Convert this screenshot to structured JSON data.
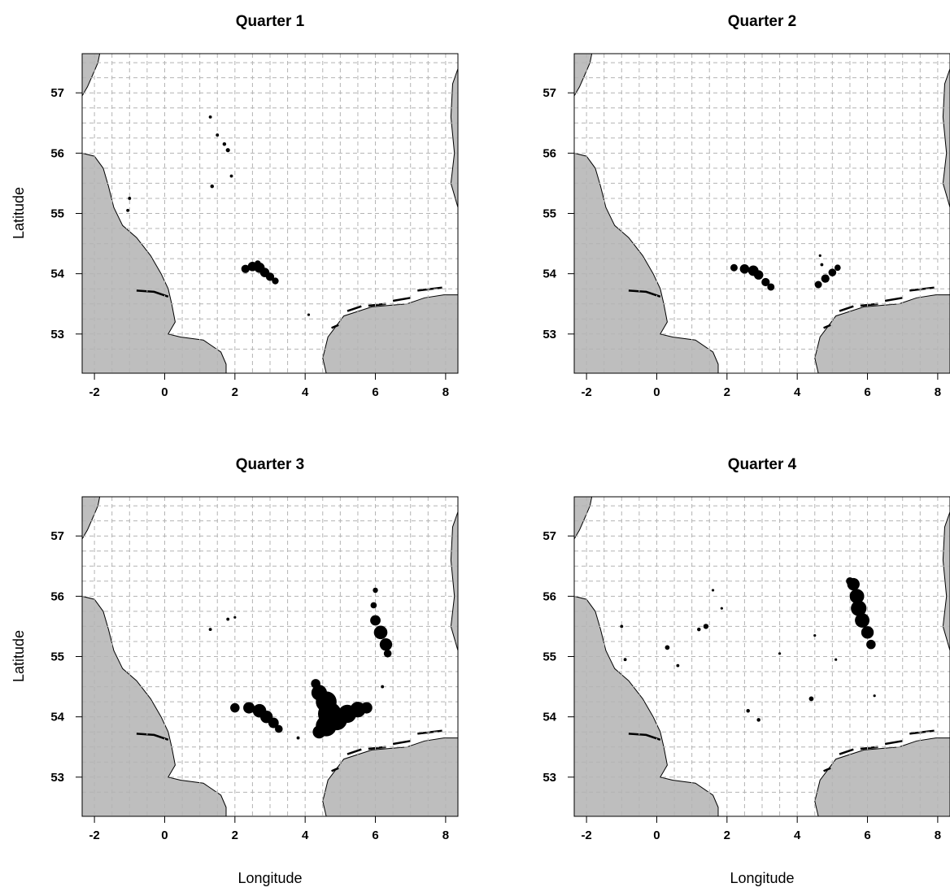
{
  "figure": {
    "xlabel": "Longitude",
    "ylabel": "Latitude"
  },
  "map": {
    "xlim": [
      -2.35,
      8.35
    ],
    "ylim": [
      52.35,
      57.65
    ],
    "xticks": [
      -2,
      0,
      2,
      4,
      6,
      8
    ],
    "yticks": [
      53,
      54,
      55,
      56,
      57
    ],
    "grid_lon": [
      -2,
      -1.5,
      -1,
      -0.5,
      0,
      0.5,
      1,
      1.5,
      2,
      2.5,
      3,
      3.5,
      4,
      4.5,
      5,
      5.5,
      6,
      6.5,
      7,
      7.5,
      8
    ],
    "grid_lat": [
      52.75,
      53,
      53.25,
      53.5,
      53.75,
      54,
      54.25,
      54.5,
      54.75,
      55,
      55.25,
      55.5,
      55.75,
      56,
      56.25,
      56.5,
      56.75,
      57,
      57.25,
      57.5
    ],
    "grid": true,
    "land_color": "#bebebe",
    "sea_color": "#ffffff",
    "grid_color": "#b4b4b4",
    "point_color": "#000000",
    "coast_west": [
      [
        -1.85,
        57.65
      ],
      [
        -1.9,
        57.5
      ],
      [
        -2.05,
        57.3
      ],
      [
        -2.2,
        57.1
      ],
      [
        -2.35,
        56.95
      ]
    ],
    "coast_england": [
      [
        -2.35,
        56.0
      ],
      [
        -2.0,
        55.95
      ],
      [
        -1.75,
        55.75
      ],
      [
        -1.6,
        55.45
      ],
      [
        -1.45,
        55.1
      ],
      [
        -1.2,
        54.8
      ],
      [
        -0.8,
        54.6
      ],
      [
        -0.4,
        54.3
      ],
      [
        -0.1,
        54.0
      ],
      [
        0.1,
        53.75
      ],
      [
        0.2,
        53.5
      ],
      [
        0.3,
        53.2
      ],
      [
        0.1,
        53.0
      ],
      [
        0.45,
        52.95
      ],
      [
        1.1,
        52.9
      ],
      [
        1.6,
        52.7
      ],
      [
        1.75,
        52.5
      ],
      [
        1.75,
        52.35
      ]
    ],
    "coast_continent": [
      [
        4.6,
        52.35
      ],
      [
        4.5,
        52.6
      ],
      [
        4.65,
        52.95
      ],
      [
        5.1,
        53.3
      ],
      [
        5.9,
        53.45
      ],
      [
        6.9,
        53.5
      ],
      [
        7.4,
        53.6
      ],
      [
        7.95,
        53.65
      ],
      [
        8.35,
        53.65
      ]
    ],
    "coast_jutland": [
      [
        8.35,
        57.4
      ],
      [
        8.2,
        57.15
      ],
      [
        8.15,
        56.6
      ],
      [
        8.25,
        56.0
      ],
      [
        8.15,
        55.5
      ],
      [
        8.35,
        55.1
      ]
    ],
    "humber": [
      [
        -0.8,
        53.72
      ],
      [
        -0.3,
        53.7
      ],
      [
        0.1,
        53.62
      ]
    ],
    "wadden_islands": [
      [
        [
          4.75,
          53.1
        ],
        [
          4.95,
          53.15
        ]
      ],
      [
        [
          5.2,
          53.38
        ],
        [
          5.6,
          53.46
        ]
      ],
      [
        [
          5.8,
          53.47
        ],
        [
          6.3,
          53.5
        ]
      ],
      [
        [
          6.5,
          53.55
        ],
        [
          7.0,
          53.6
        ]
      ],
      [
        [
          7.2,
          53.72
        ],
        [
          7.9,
          53.77
        ]
      ]
    ]
  },
  "panels": [
    {
      "title": "Quarter 1",
      "points": [
        {
          "lon": 1.3,
          "lat": 56.6,
          "r": 0.6
        },
        {
          "lon": 1.5,
          "lat": 56.3,
          "r": 0.6
        },
        {
          "lon": 1.7,
          "lat": 56.15,
          "r": 0.7
        },
        {
          "lon": 1.8,
          "lat": 56.05,
          "r": 0.8
        },
        {
          "lon": 1.9,
          "lat": 55.62,
          "r": 0.6
        },
        {
          "lon": 1.35,
          "lat": 55.45,
          "r": 0.7
        },
        {
          "lon": -1.0,
          "lat": 55.25,
          "r": 0.6
        },
        {
          "lon": -1.05,
          "lat": 55.05,
          "r": 0.6
        },
        {
          "lon": 2.3,
          "lat": 54.08,
          "r": 1.6
        },
        {
          "lon": 2.5,
          "lat": 54.12,
          "r": 1.8
        },
        {
          "lon": 2.7,
          "lat": 54.1,
          "r": 2.0
        },
        {
          "lon": 2.85,
          "lat": 54.02,
          "r": 1.8
        },
        {
          "lon": 3.0,
          "lat": 53.95,
          "r": 1.6
        },
        {
          "lon": 3.15,
          "lat": 53.88,
          "r": 1.3
        },
        {
          "lon": 2.65,
          "lat": 54.17,
          "r": 1.2
        },
        {
          "lon": 4.1,
          "lat": 53.32,
          "r": 0.5
        }
      ]
    },
    {
      "title": "Quarter 2",
      "points": [
        {
          "lon": 2.2,
          "lat": 54.1,
          "r": 1.4
        },
        {
          "lon": 2.5,
          "lat": 54.08,
          "r": 1.8
        },
        {
          "lon": 2.75,
          "lat": 54.05,
          "r": 2.0
        },
        {
          "lon": 2.9,
          "lat": 53.98,
          "r": 1.8
        },
        {
          "lon": 3.1,
          "lat": 53.86,
          "r": 1.6
        },
        {
          "lon": 3.25,
          "lat": 53.78,
          "r": 1.4
        },
        {
          "lon": 4.6,
          "lat": 53.82,
          "r": 1.4
        },
        {
          "lon": 4.8,
          "lat": 53.92,
          "r": 1.6
        },
        {
          "lon": 5.0,
          "lat": 54.02,
          "r": 1.5
        },
        {
          "lon": 5.15,
          "lat": 54.1,
          "r": 1.2
        },
        {
          "lon": 4.7,
          "lat": 54.15,
          "r": 0.6
        },
        {
          "lon": 4.65,
          "lat": 54.3,
          "r": 0.5
        }
      ]
    },
    {
      "title": "Quarter 3",
      "points": [
        {
          "lon": 1.8,
          "lat": 55.62,
          "r": 0.6
        },
        {
          "lon": 1.3,
          "lat": 55.45,
          "r": 0.6
        },
        {
          "lon": 2.0,
          "lat": 55.65,
          "r": 0.5
        },
        {
          "lon": 6.0,
          "lat": 56.1,
          "r": 1.0
        },
        {
          "lon": 5.95,
          "lat": 55.85,
          "r": 1.2
        },
        {
          "lon": 6.0,
          "lat": 55.6,
          "r": 2.0
        },
        {
          "lon": 6.15,
          "lat": 55.4,
          "r": 2.6
        },
        {
          "lon": 6.3,
          "lat": 55.2,
          "r": 2.4
        },
        {
          "lon": 6.35,
          "lat": 55.05,
          "r": 1.5
        },
        {
          "lon": 2.0,
          "lat": 54.15,
          "r": 1.8
        },
        {
          "lon": 2.4,
          "lat": 54.15,
          "r": 2.2
        },
        {
          "lon": 2.7,
          "lat": 54.1,
          "r": 2.6
        },
        {
          "lon": 2.9,
          "lat": 54.0,
          "r": 2.4
        },
        {
          "lon": 3.1,
          "lat": 53.9,
          "r": 2.0
        },
        {
          "lon": 3.25,
          "lat": 53.8,
          "r": 1.5
        },
        {
          "lon": 4.4,
          "lat": 54.4,
          "r": 3.0
        },
        {
          "lon": 4.6,
          "lat": 54.25,
          "r": 4.0
        },
        {
          "lon": 4.7,
          "lat": 54.05,
          "r": 4.5
        },
        {
          "lon": 4.6,
          "lat": 53.85,
          "r": 4.0
        },
        {
          "lon": 4.9,
          "lat": 53.95,
          "r": 4.0
        },
        {
          "lon": 5.2,
          "lat": 54.05,
          "r": 3.5
        },
        {
          "lon": 5.5,
          "lat": 54.12,
          "r": 3.0
        },
        {
          "lon": 5.75,
          "lat": 54.15,
          "r": 2.2
        },
        {
          "lon": 4.4,
          "lat": 53.75,
          "r": 2.5
        },
        {
          "lon": 4.3,
          "lat": 54.55,
          "r": 1.8
        },
        {
          "lon": 6.2,
          "lat": 54.5,
          "r": 0.6
        },
        {
          "lon": 3.8,
          "lat": 53.65,
          "r": 0.6
        }
      ]
    },
    {
      "title": "Quarter 4",
      "points": [
        {
          "lon": 5.6,
          "lat": 56.2,
          "r": 2.4
        },
        {
          "lon": 5.7,
          "lat": 56.0,
          "r": 2.8
        },
        {
          "lon": 5.75,
          "lat": 55.8,
          "r": 3.0
        },
        {
          "lon": 5.85,
          "lat": 55.6,
          "r": 2.8
        },
        {
          "lon": 6.0,
          "lat": 55.4,
          "r": 2.4
        },
        {
          "lon": 6.1,
          "lat": 55.2,
          "r": 1.8
        },
        {
          "lon": 5.5,
          "lat": 56.25,
          "r": 1.5
        },
        {
          "lon": 1.6,
          "lat": 56.1,
          "r": 0.5
        },
        {
          "lon": 1.85,
          "lat": 55.8,
          "r": 0.5
        },
        {
          "lon": 1.4,
          "lat": 55.5,
          "r": 1.0
        },
        {
          "lon": 1.2,
          "lat": 55.45,
          "r": 0.7
        },
        {
          "lon": 0.3,
          "lat": 55.15,
          "r": 0.9
        },
        {
          "lon": 0.6,
          "lat": 54.85,
          "r": 0.6
        },
        {
          "lon": -1.0,
          "lat": 55.5,
          "r": 0.6
        },
        {
          "lon": -0.9,
          "lat": 54.95,
          "r": 0.6
        },
        {
          "lon": 2.6,
          "lat": 54.1,
          "r": 0.7
        },
        {
          "lon": 2.9,
          "lat": 53.95,
          "r": 0.7
        },
        {
          "lon": 4.4,
          "lat": 54.3,
          "r": 0.9
        },
        {
          "lon": 3.5,
          "lat": 55.05,
          "r": 0.5
        },
        {
          "lon": 5.1,
          "lat": 54.95,
          "r": 0.5
        },
        {
          "lon": 6.2,
          "lat": 54.35,
          "r": 0.5
        },
        {
          "lon": 4.5,
          "lat": 55.35,
          "r": 0.5
        }
      ]
    }
  ]
}
